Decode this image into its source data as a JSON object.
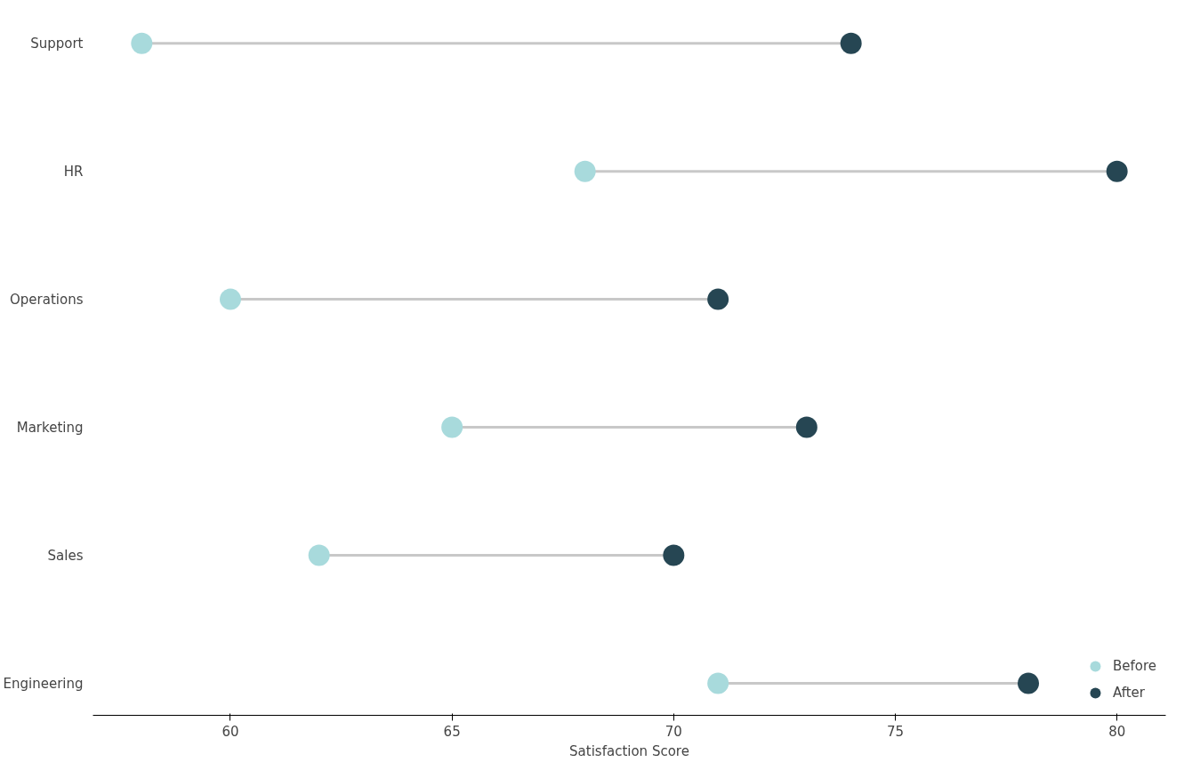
{
  "chart_data": {
    "type": "scatter",
    "orientation": "horizontal",
    "xlabel": "Satisfaction Score",
    "categories": [
      "Support",
      "HR",
      "Operations",
      "Marketing",
      "Sales",
      "Engineering"
    ],
    "series": [
      {
        "name": "Before",
        "color": "#a8dadc",
        "values": [
          58,
          68,
          60,
          65,
          62,
          71
        ]
      },
      {
        "name": "After",
        "color": "#264653",
        "values": [
          74,
          80,
          71,
          73,
          70,
          78
        ]
      }
    ],
    "xlim": [
      56.9,
      81.1
    ],
    "xticks": [
      60,
      65,
      70,
      75,
      80
    ],
    "grid": false,
    "legend": "bottom right",
    "marker": "circle"
  }
}
